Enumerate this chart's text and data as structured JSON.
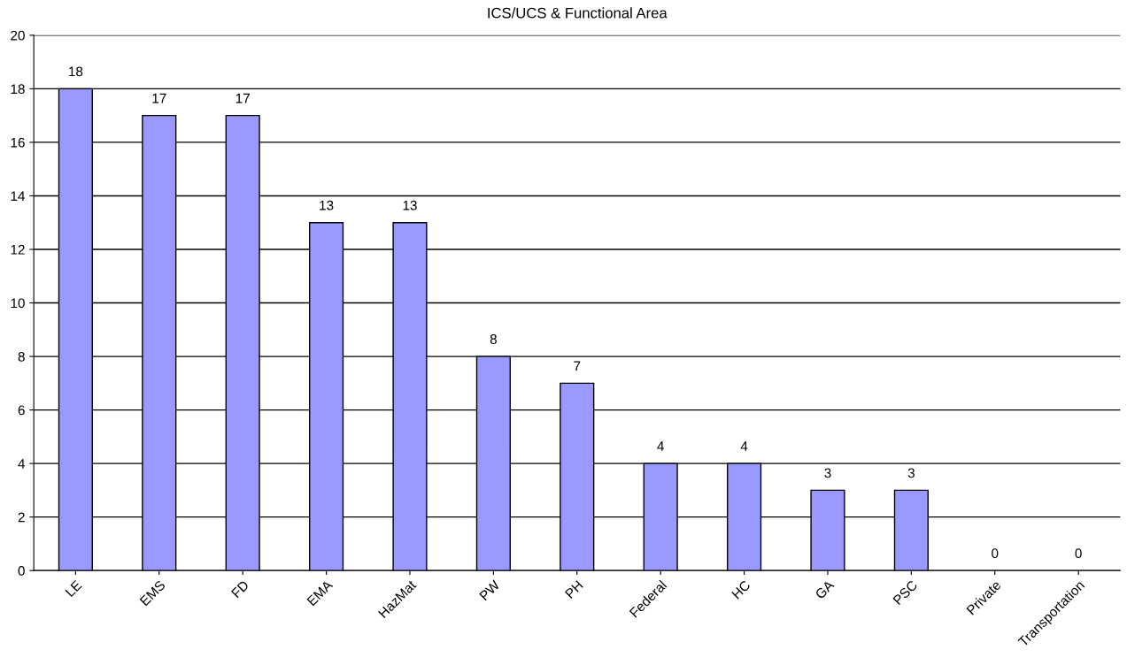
{
  "chart_data": {
    "type": "bar",
    "title": "ICS/UCS & Functional Area",
    "categories": [
      "LE",
      "EMS",
      "FD",
      "EMA",
      "HazMat",
      "PW",
      "PH",
      "Federal",
      "HC",
      "GA",
      "PSC",
      "Private",
      "Transportation"
    ],
    "values": [
      18,
      17,
      17,
      13,
      13,
      8,
      7,
      4,
      4,
      3,
      3,
      0,
      0
    ],
    "color": "#9999ff",
    "ylim": [
      0,
      20
    ],
    "yticks": [
      0,
      2,
      4,
      6,
      8,
      10,
      12,
      14,
      16,
      18,
      20
    ],
    "grid": "y",
    "data_labels": true
  }
}
